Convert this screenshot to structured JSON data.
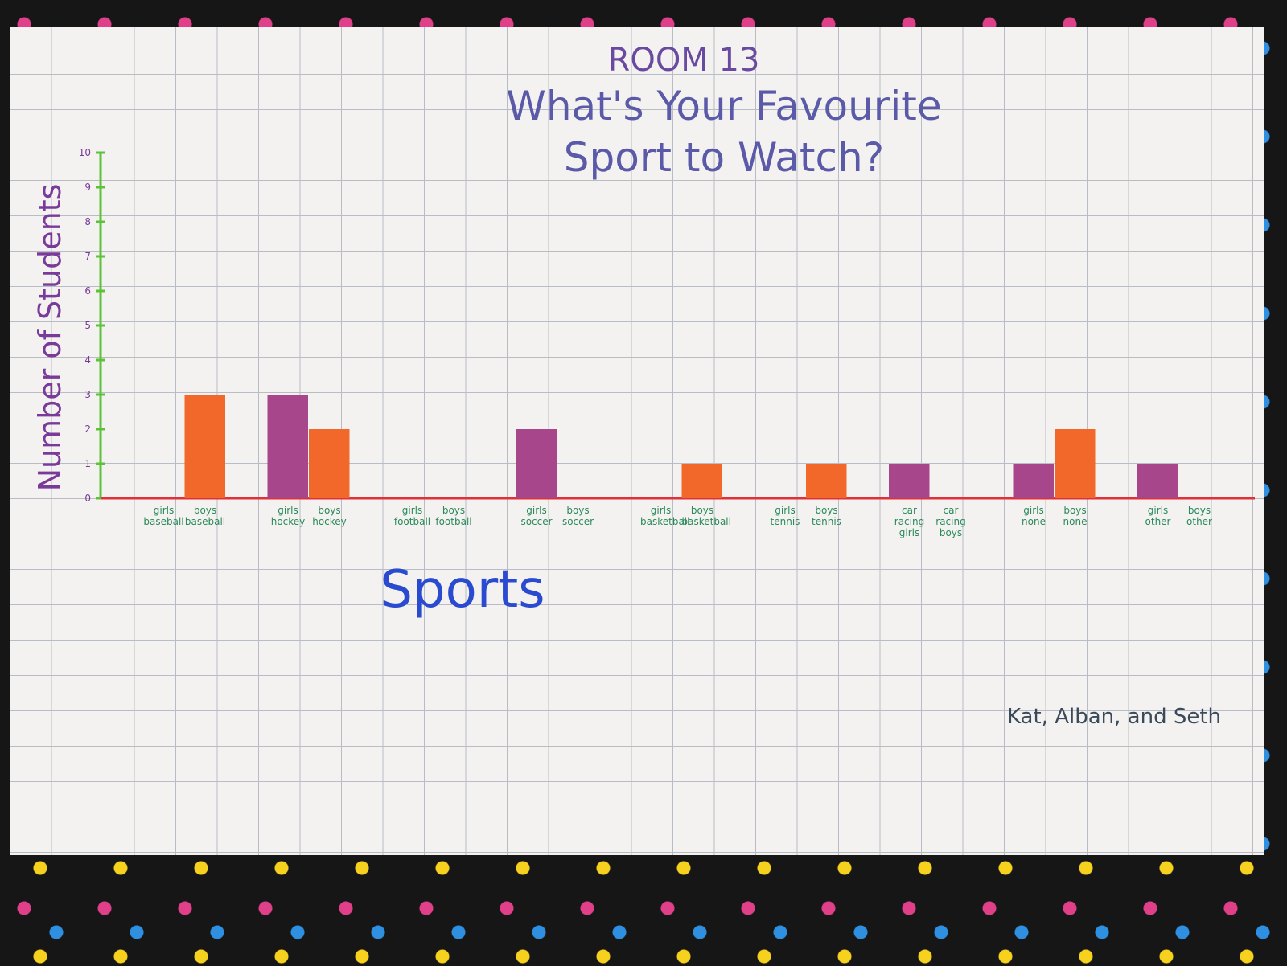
{
  "chart_data": {
    "type": "bar",
    "title": "ROOM 13",
    "subtitle": "What's Your Favourite Sport to Watch?",
    "y_label": "Number of Students",
    "x_label": "Sports",
    "annotation": "Kat, Alban, and Seth",
    "categories": [
      "girls baseball",
      "boys baseball",
      "girls hockey",
      "boys hockey",
      "girls football",
      "boys football",
      "girls soccer",
      "boys soccer",
      "girls basketball",
      "boys basketball",
      "girls tennis",
      "boys tennis",
      "car racing girls",
      "car racing boys",
      "girls none",
      "boys none",
      "girls other",
      "boys other"
    ],
    "values": [
      0,
      3,
      3,
      2,
      0,
      0,
      2,
      0,
      0,
      1,
      0,
      1,
      1,
      0,
      1,
      2,
      1,
      0
    ],
    "colors": [
      "#a8468c",
      "#f2682a",
      "#a8468c",
      "#f2682a",
      "#a8468c",
      "#f2682a",
      "#a8468c",
      "#f2682a",
      "#a8468c",
      "#f2682a",
      "#a8468c",
      "#f2682a",
      "#a8468c",
      "#f2682a",
      "#a8468c",
      "#f2682a",
      "#a8468c",
      "#f2682a"
    ],
    "ylim": [
      0,
      10
    ],
    "yticks": [
      0,
      1,
      2,
      3,
      4,
      5,
      6,
      7,
      8,
      9,
      10
    ]
  }
}
